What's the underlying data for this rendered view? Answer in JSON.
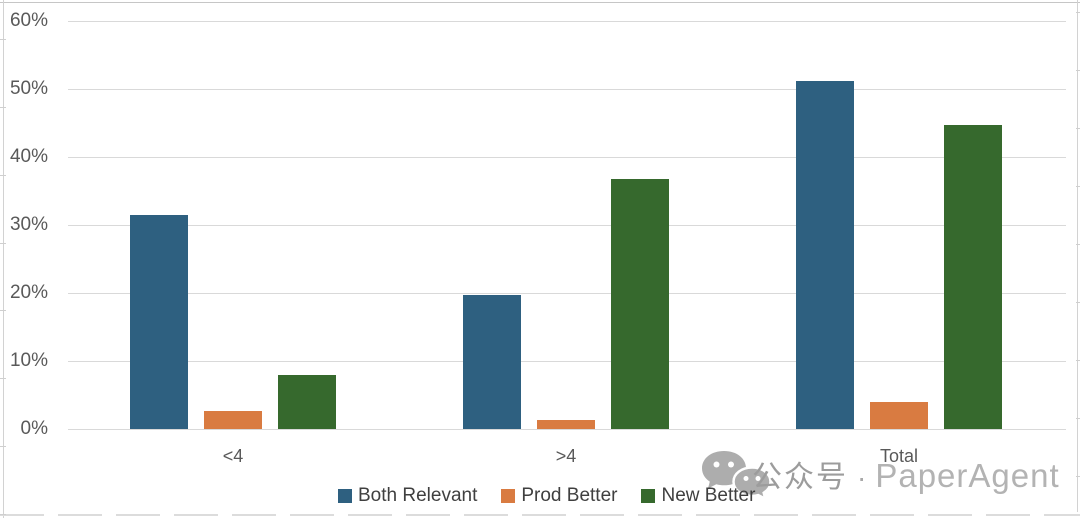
{
  "chart_data": {
    "type": "bar",
    "title": "",
    "categories": [
      "<4",
      ">4",
      "Total"
    ],
    "series": [
      {
        "name": "Both Relevant",
        "color": "#2e6080",
        "values": [
          31.5,
          19.7,
          51.2
        ]
      },
      {
        "name": "Prod Better",
        "color": "#d97b41",
        "values": [
          2.6,
          1.3,
          3.9
        ]
      },
      {
        "name": "New Better",
        "color": "#36692d",
        "values": [
          7.9,
          36.8,
          44.7
        ]
      }
    ],
    "y_ticks": [
      "0%",
      "10%",
      "20%",
      "30%",
      "40%",
      "50%",
      "60%"
    ],
    "ylim": [
      0,
      60
    ],
    "grid": true,
    "legend_position": "bottom"
  },
  "watermark": {
    "icon": "wechat-icon",
    "cn_text": "公众号",
    "separator": "·",
    "en_text": "PaperAgent"
  },
  "colors": {
    "gridline": "#d9d9d9",
    "axis_text": "#595959",
    "legend_text": "#3f3f3f",
    "watermark_cn": "#9c9c9c",
    "watermark_en": "#b3b3b3"
  }
}
